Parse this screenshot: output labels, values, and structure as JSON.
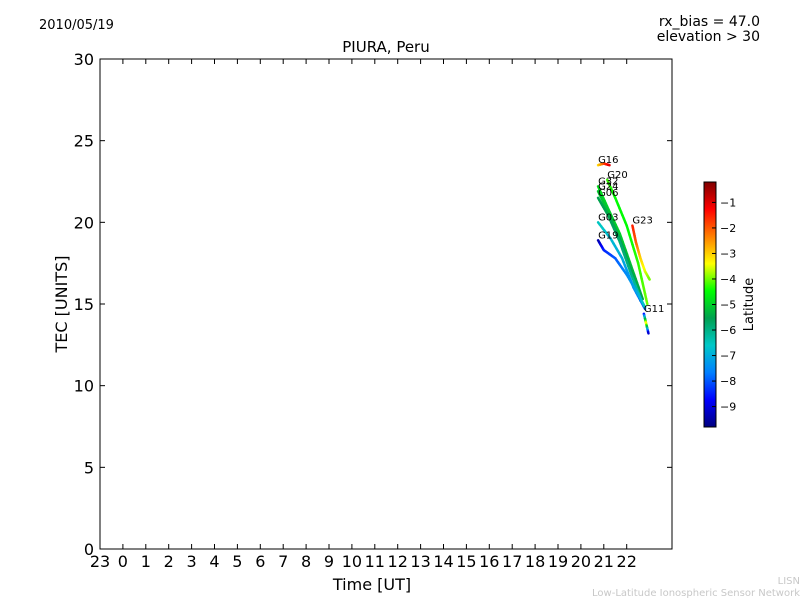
{
  "header": {
    "date": "2010/05/19",
    "rx_bias": "rx_bias = 47.0",
    "elevation": "elevation > 30"
  },
  "footer": {
    "line1": "LISN",
    "line2": "Low-Latitude Ionospheric Sensor Network"
  },
  "chart_data": {
    "type": "scatter",
    "title": "PIURA, Peru",
    "xlabel": "Time [UT]",
    "ylabel": "TEC [UNITS]",
    "x_tick_labels": [
      "23",
      "0",
      "1",
      "2",
      "3",
      "4",
      "5",
      "6",
      "7",
      "8",
      "9",
      "10",
      "11",
      "12",
      "13",
      "14",
      "15",
      "16",
      "17",
      "18",
      "19",
      "20",
      "21",
      "22"
    ],
    "ylim": [
      0,
      30
    ],
    "y_ticks": [
      0,
      5,
      10,
      15,
      20,
      25,
      30
    ],
    "grid": false,
    "colorbar": {
      "label": "Latitude",
      "ticks": [
        -1,
        -2,
        -3,
        -4,
        -5,
        -6,
        -7,
        -8,
        -9
      ],
      "range": [
        -9.8,
        -0.2
      ],
      "colormap": [
        "#00007f",
        "#0000ff",
        "#007fff",
        "#00c8c8",
        "#00a050",
        "#00ff00",
        "#ffff00",
        "#ff7f00",
        "#ff0000",
        "#7f0000"
      ]
    },
    "series": [
      {
        "name": "G16",
        "x": [
          20.75,
          21.0,
          21.25
        ],
        "y": [
          23.5,
          23.6,
          23.5
        ],
        "lat": [
          -3.2,
          -2.0,
          -1.0
        ]
      },
      {
        "name": "G20",
        "x": [
          21.15,
          21.5,
          22.0,
          22.5,
          22.9
        ],
        "y": [
          22.6,
          21.5,
          19.8,
          17.5,
          15.0
        ],
        "lat": [
          -4.2,
          -4.5,
          -4.5,
          -4.3,
          -4.0
        ]
      },
      {
        "name": "G32",
        "x": [
          20.75,
          21.2,
          21.7,
          22.2,
          22.7
        ],
        "y": [
          22.2,
          20.8,
          19.3,
          17.3,
          15.3
        ],
        "lat": [
          -4.8,
          -5.0,
          -5.0,
          -5.2,
          -5.5
        ]
      },
      {
        "name": "G24",
        "x": [
          20.75,
          21.2,
          21.7,
          22.2,
          22.6
        ],
        "y": [
          21.9,
          20.6,
          19.0,
          17.0,
          15.2
        ],
        "lat": [
          -5.0,
          -5.2,
          -5.5,
          -5.5,
          -5.8
        ]
      },
      {
        "name": "G06",
        "x": [
          20.75,
          21.2,
          21.7,
          22.2,
          22.7
        ],
        "y": [
          21.5,
          20.4,
          18.8,
          16.8,
          15.0
        ],
        "lat": [
          -5.5,
          -5.5,
          -5.8,
          -6.0,
          -6.5
        ]
      },
      {
        "name": "G03",
        "x": [
          20.75,
          21.3,
          21.8,
          22.3,
          22.8
        ],
        "y": [
          20.0,
          19.0,
          17.8,
          16.0,
          14.7
        ],
        "lat": [
          -6.5,
          -6.8,
          -7.0,
          -7.5,
          -8.0
        ]
      },
      {
        "name": "G19",
        "x": [
          20.75,
          21.0,
          21.5,
          22.0,
          22.5,
          22.8
        ],
        "y": [
          18.9,
          18.3,
          17.8,
          16.8,
          15.6,
          14.8
        ],
        "lat": [
          -9.5,
          -8.5,
          -8.0,
          -7.5,
          -7.0,
          -6.5
        ]
      },
      {
        "name": "G23",
        "x": [
          22.25,
          22.4,
          22.6,
          22.8,
          23.0
        ],
        "y": [
          19.8,
          18.8,
          17.8,
          17.0,
          16.5
        ],
        "lat": [
          -1.5,
          -2.0,
          -3.0,
          -3.5,
          -4.0
        ]
      },
      {
        "name": "G11",
        "x": [
          22.75,
          22.85,
          22.95
        ],
        "y": [
          14.4,
          13.8,
          13.2
        ],
        "lat": [
          -9.0,
          -3.0,
          -9.5
        ]
      }
    ]
  }
}
